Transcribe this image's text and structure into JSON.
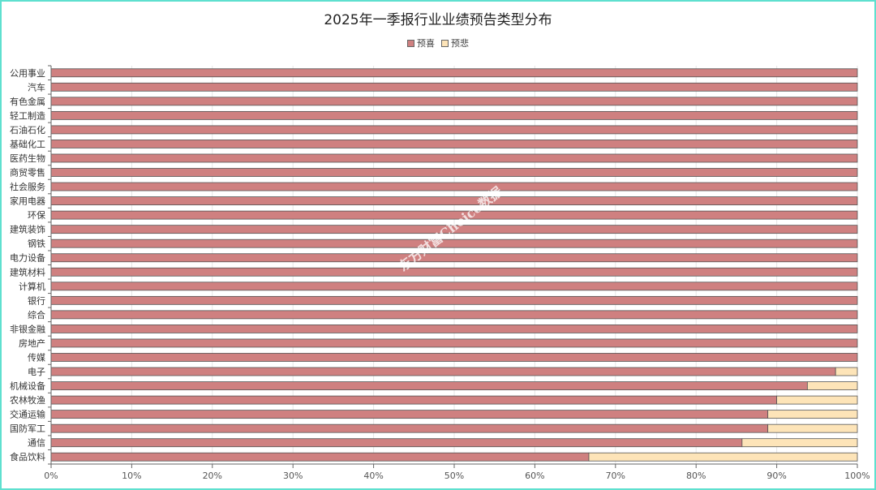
{
  "colors": {
    "positive": "#cf8080",
    "negative": "#fde4b8",
    "grid": "#e6e6e6",
    "axis": "#666666",
    "border": "#5ee0cf"
  },
  "watermark": "东方财富Choice数据",
  "chart_data": {
    "type": "bar",
    "orientation": "horizontal",
    "stacked": true,
    "title": "2025年一季报行业业绩预告类型分布",
    "legend_position": "top-center",
    "grid": true,
    "xlim": [
      0,
      100
    ],
    "x_tick_labels": [
      "0%",
      "10%",
      "20%",
      "30%",
      "40%",
      "50%",
      "60%",
      "70%",
      "80%",
      "90%",
      "100%"
    ],
    "categories": [
      "公用事业",
      "汽车",
      "有色金属",
      "轻工制造",
      "石油石化",
      "基础化工",
      "医药生物",
      "商贸零售",
      "社会服务",
      "家用电器",
      "环保",
      "建筑装饰",
      "钢铁",
      "电力设备",
      "建筑材料",
      "计算机",
      "银行",
      "综合",
      "非银金融",
      "房地产",
      "传媒",
      "电子",
      "机械设备",
      "农林牧渔",
      "交通运输",
      "国防军工",
      "通信",
      "食品饮料"
    ],
    "series": [
      {
        "name": "预喜",
        "values": [
          100,
          100,
          100,
          100,
          100,
          100,
          100,
          100,
          100,
          100,
          100,
          100,
          100,
          100,
          100,
          100,
          100,
          100,
          100,
          100,
          100,
          97.3,
          93.8,
          90,
          88.9,
          88.9,
          85.7,
          66.7
        ]
      },
      {
        "name": "预悲",
        "values": [
          0,
          0,
          0,
          0,
          0,
          0,
          0,
          0,
          0,
          0,
          0,
          0,
          0,
          0,
          0,
          0,
          0,
          0,
          0,
          0,
          0,
          2.7,
          6.2,
          10,
          11.1,
          11.1,
          14.3,
          33.3
        ]
      }
    ]
  }
}
